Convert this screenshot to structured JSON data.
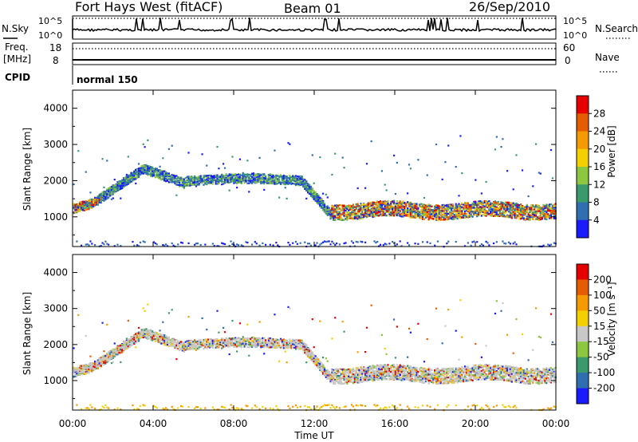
{
  "header": {
    "station": "Fort Hays West (fitACF)",
    "beam": "Beam 01",
    "date": "26/Sep/2010"
  },
  "panels": {
    "nsky": {
      "left_label": "N.Sky",
      "right_label": "N.Search",
      "ticks_left": [
        "10^5",
        "10^0"
      ],
      "ticks_right": [
        "10^5",
        "10^0"
      ]
    },
    "freq": {
      "left_label": "Freq.",
      "unit": "[MHz]",
      "ticks_left": [
        "18",
        "8"
      ],
      "right_label": "Nave",
      "ticks_right": [
        "60",
        "0"
      ]
    },
    "cpid": {
      "label": "CPID",
      "program": "normal 150"
    }
  },
  "chart_data": [
    {
      "type": "heatmap",
      "title": "",
      "xlabel": "",
      "ylabel": "Slant Range [km]",
      "ylim": [
        180,
        4500
      ],
      "yticks": [
        "1000",
        "2000",
        "3000",
        "4000"
      ],
      "colorbar": {
        "label": "Power [dB]",
        "ticks": [
          "4",
          "8",
          "12",
          "16",
          "20",
          "24",
          "28"
        ],
        "colors": [
          "#1a1aff",
          "#2f6fb0",
          "#3a9a6e",
          "#8dc63f",
          "#f5d000",
          "#f59a00",
          "#e65c00",
          "#e60000"
        ]
      }
    },
    {
      "type": "heatmap",
      "title": "",
      "xlabel": "Time UT",
      "ylabel": "Slant Range [km]",
      "ylim": [
        180,
        4500
      ],
      "yticks": [
        "1000",
        "2000",
        "3000",
        "4000"
      ],
      "xticks": [
        "00:00",
        "04:00",
        "08:00",
        "12:00",
        "16:00",
        "20:00",
        "00:00"
      ],
      "colorbar": {
        "label": "Velocity [m s⁻¹]",
        "ticks": [
          "200",
          "100",
          "50",
          "15",
          "-15",
          "-50",
          "-100",
          "-200"
        ],
        "colors": [
          "#1a1aff",
          "#2f6fb0",
          "#3a9a6e",
          "#8dc63f",
          "#c8c8c8",
          "#f5d000",
          "#f59a00",
          "#e65c00",
          "#e60000"
        ]
      }
    }
  ]
}
